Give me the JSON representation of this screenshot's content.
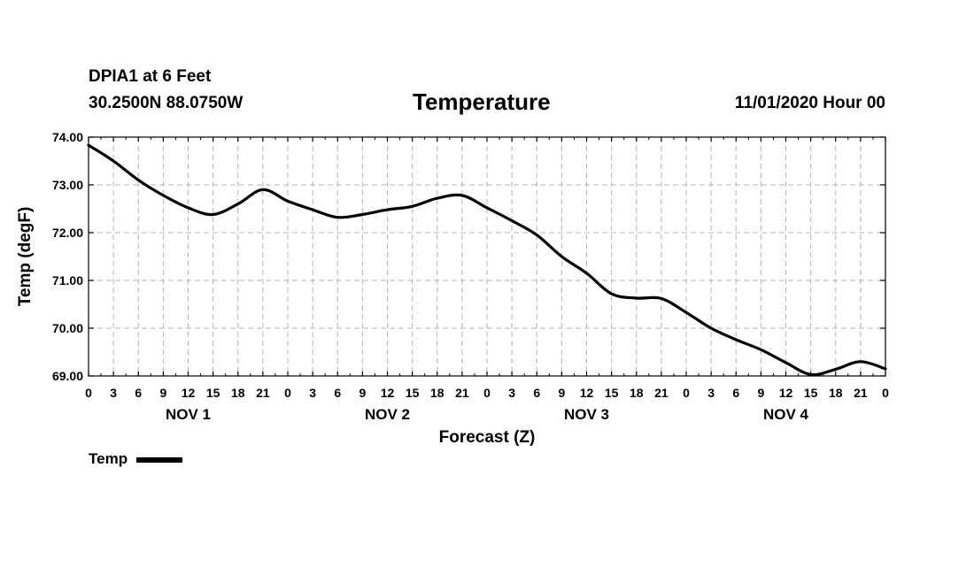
{
  "header": {
    "station": "DPIA1 at 6 Feet",
    "coords": "30.2500N 88.0750W",
    "datetime": "11/01/2020 Hour 00"
  },
  "chart_data": {
    "type": "line",
    "title": "Temperature",
    "xlabel": "Forecast (Z)",
    "ylabel": "Temp (degF)",
    "ylim": [
      69.0,
      74.0
    ],
    "xlim": [
      0,
      96
    ],
    "grid": true,
    "legend_position": "bottom-left",
    "yticks": [
      "69.00",
      "70.00",
      "71.00",
      "72.00",
      "73.00",
      "74.00"
    ],
    "xtick_labels": [
      "0",
      "3",
      "6",
      "9",
      "12",
      "15",
      "18",
      "21",
      "0",
      "3",
      "6",
      "9",
      "12",
      "15",
      "18",
      "21",
      "0",
      "3",
      "6",
      "9",
      "12",
      "15",
      "18",
      "21",
      "0",
      "3",
      "6",
      "9",
      "12",
      "15",
      "18",
      "21",
      "0"
    ],
    "day_labels": [
      "NOV 1",
      "NOV 2",
      "NOV 3",
      "NOV 4"
    ],
    "series": [
      {
        "name": "Temp",
        "color": "#000000",
        "x": [
          0,
          3,
          6,
          9,
          12,
          15,
          18,
          21,
          24,
          27,
          30,
          33,
          36,
          39,
          42,
          45,
          48,
          51,
          54,
          57,
          60,
          63,
          66,
          69,
          72,
          75,
          78,
          81,
          84,
          87,
          90,
          93,
          96
        ],
        "y": [
          73.83,
          73.5,
          73.1,
          72.78,
          72.52,
          72.38,
          72.6,
          72.9,
          72.66,
          72.48,
          72.32,
          72.38,
          72.48,
          72.55,
          72.72,
          72.78,
          72.52,
          72.25,
          71.95,
          71.5,
          71.15,
          70.72,
          70.63,
          70.62,
          70.33,
          70.0,
          69.76,
          69.55,
          69.28,
          69.03,
          69.14,
          69.3,
          69.15
        ]
      }
    ]
  }
}
